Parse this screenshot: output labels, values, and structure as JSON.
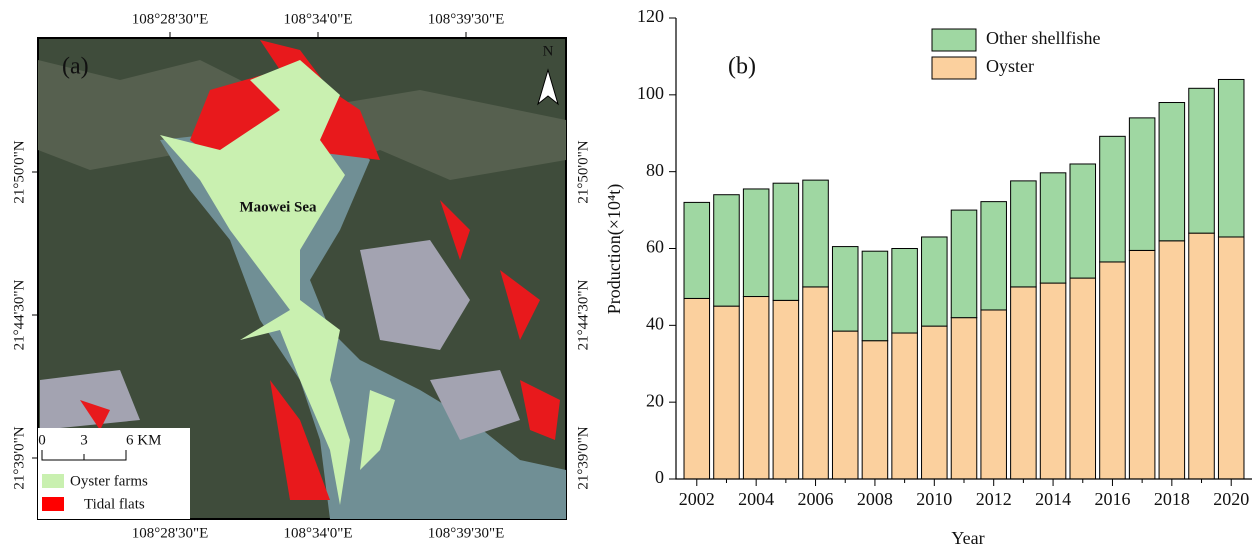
{
  "map": {
    "panel_label": "(a)",
    "place_label": "Maowei Sea",
    "north_label": "N",
    "scale_labels": [
      "0",
      "3",
      "6 KM"
    ],
    "legend": [
      "Oyster farms",
      "Tidal flats"
    ],
    "lon_labels": [
      "108°28'30\"E",
      "108°34'0\"E",
      "108°39'30\"E"
    ],
    "lat_labels": [
      "21°50'0\"N",
      "21°44'30\"N",
      "21°39'0\"N"
    ]
  },
  "chart_data": {
    "type": "bar",
    "stacked": true,
    "panel_label": "(b)",
    "x_label": "Year",
    "y_label": "Production(×10⁴t)",
    "categories": [
      "2002",
      null,
      "2004",
      null,
      "2006",
      null,
      "2008",
      null,
      "2010",
      null,
      "2012",
      null,
      "2014",
      null,
      "2016",
      null,
      "2018",
      null,
      "2020"
    ],
    "series": [
      {
        "name": "Oyster",
        "color": "#fbd09e",
        "values": [
          47,
          45,
          47.5,
          46.5,
          50,
          38.5,
          36,
          38,
          39.8,
          42,
          44,
          50,
          51,
          52.3,
          56.5,
          59.5,
          62,
          64,
          63
        ]
      },
      {
        "name": "Other shellfishe",
        "color": "#9fd7a2",
        "values": [
          25,
          29,
          28,
          30.5,
          27.8,
          22,
          23.3,
          22,
          23.2,
          28,
          28.2,
          27.6,
          28.7,
          29.7,
          32.7,
          34.5,
          36,
          37.7,
          41
        ]
      }
    ],
    "ylim": [
      0,
      120
    ],
    "yticks": [
      0,
      20,
      40,
      60,
      80,
      100,
      120
    ]
  }
}
